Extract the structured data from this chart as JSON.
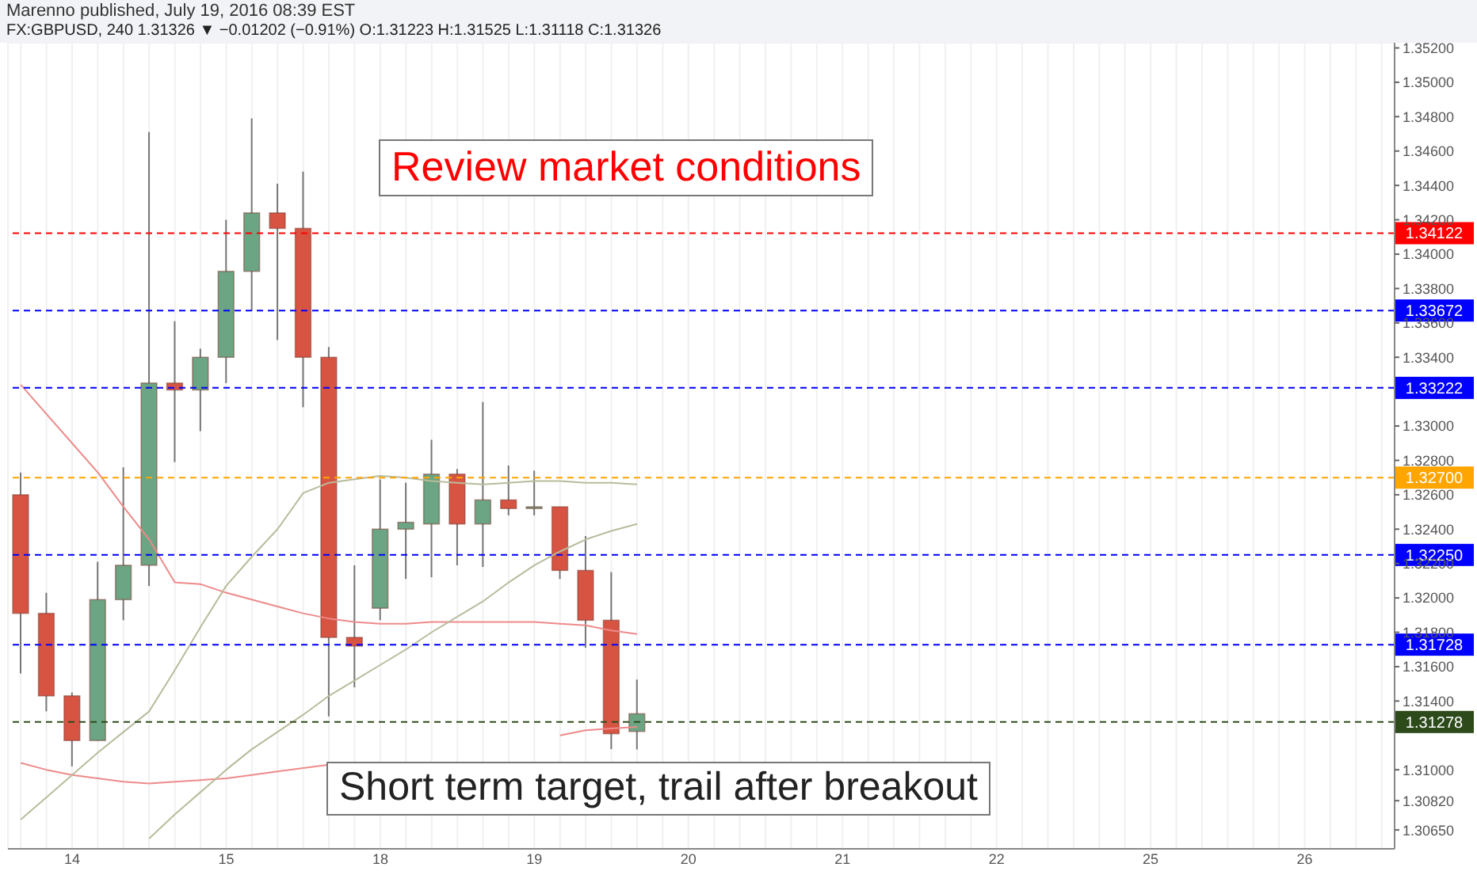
{
  "chart_data": {
    "type": "candlestick",
    "title": "FX:GBPUSD, 240 1.31326 ▼ −0.01202 (−0.91%) O:1.31223 H:1.31525 L:1.31118 C:1.31326",
    "categories": [
      null,
      null,
      "14",
      null,
      null,
      null,
      null,
      null,
      "15",
      null,
      null,
      null,
      null,
      null,
      "18",
      null,
      null,
      null,
      null,
      null,
      "19",
      null,
      null,
      null,
      null,
      null,
      "20",
      null,
      null,
      null,
      null,
      null,
      "21",
      null,
      null,
      null,
      null,
      null,
      "22",
      null,
      null,
      null,
      null,
      null,
      "25",
      null,
      null,
      null,
      null,
      null,
      "26",
      null,
      null,
      null
    ],
    "ohlc": [
      [
        1.326,
        1.3273,
        1.3156,
        1.3191
      ],
      [
        1.3191,
        1.3203,
        1.3134,
        1.3143
      ],
      [
        1.3143,
        1.3145,
        1.3102,
        1.3117
      ],
      [
        1.3117,
        1.3221,
        1.3117,
        1.3199
      ],
      [
        1.3199,
        1.3276,
        1.3187,
        1.3219
      ],
      [
        1.3219,
        1.3471,
        1.3207,
        1.3325
      ],
      [
        1.3325,
        1.3361,
        1.3279,
        1.3321
      ],
      [
        1.3321,
        1.3345,
        1.3297,
        1.334
      ],
      [
        1.334,
        1.342,
        1.3325,
        1.339
      ],
      [
        1.339,
        1.3479,
        1.3367,
        1.3424
      ],
      [
        1.3424,
        1.3441,
        1.335,
        1.3415
      ],
      [
        1.3415,
        1.3448,
        1.3311,
        1.334
      ],
      [
        1.334,
        1.3346,
        1.3131,
        1.3177
      ],
      [
        1.3177,
        1.3219,
        1.3148,
        1.3172
      ],
      [
        1.3194,
        1.3269,
        1.3187,
        1.324
      ],
      [
        1.324,
        1.3267,
        1.3211,
        1.3244
      ],
      [
        1.3243,
        1.3292,
        1.3212,
        1.3272
      ],
      [
        1.3272,
        1.3275,
        1.3219,
        1.3243
      ],
      [
        1.3243,
        1.3314,
        1.3218,
        1.3257
      ],
      [
        1.3257,
        1.3277,
        1.3248,
        1.3252
      ],
      [
        1.3252,
        1.3274,
        1.3248,
        1.3253
      ],
      [
        1.3253,
        1.3253,
        1.3211,
        1.3216
      ],
      [
        1.3216,
        1.3236,
        1.3171,
        1.3187
      ],
      [
        1.3187,
        1.3215,
        1.3112,
        1.3121
      ],
      [
        1.31223,
        1.31525,
        1.31118,
        1.31326
      ],
      null,
      null,
      null,
      null,
      null,
      null,
      null,
      null,
      null,
      null,
      null,
      null,
      null,
      null,
      null,
      null,
      null,
      null,
      null,
      null,
      null,
      null,
      null,
      null,
      null,
      null,
      null,
      null,
      null
    ],
    "colors": [
      "#d75442",
      "#d75442",
      "#d75442",
      "#6ba583",
      "#6ba583",
      "#6ba583",
      "#d75442",
      "#6ba583",
      "#6ba583",
      "#6ba583",
      "#d75442",
      "#d75442",
      "#d75442",
      "#d75442",
      "#6ba583",
      "#6ba583",
      "#6ba583",
      "#d75442",
      "#6ba583",
      "#d75442",
      "#6ba583",
      "#d75442",
      "#d75442",
      "#d75442",
      "#6ba583",
      null,
      null,
      null,
      null,
      null,
      null,
      null,
      null,
      null,
      null,
      null,
      null,
      null,
      null,
      null,
      null,
      null,
      null,
      null,
      null,
      null,
      null,
      null,
      null,
      null,
      null,
      null,
      null,
      null
    ],
    "series": [
      {
        "type": "line",
        "color": "#ee8a8a",
        "values": [
          1.3324,
          1.3307,
          1.329,
          1.3273,
          1.3253,
          1.3234,
          1.3209,
          1.3208,
          1.3203,
          1.3199,
          1.3195,
          1.3191,
          1.3188,
          1.3186,
          1.3185,
          1.3185,
          1.3186,
          1.3186,
          1.3186,
          1.3186,
          1.3186,
          1.3185,
          1.3184,
          1.3181,
          1.3179,
          null,
          null,
          null,
          null,
          null,
          null,
          null,
          null,
          null,
          null,
          null,
          null,
          null,
          null,
          null,
          null,
          null,
          null,
          null,
          null,
          null,
          null,
          null,
          null,
          null,
          null,
          null,
          null,
          null
        ]
      },
      {
        "type": "line",
        "color": "#ee8a8a",
        "values": [
          1.3104,
          1.31,
          1.3097,
          1.3095,
          1.3093,
          1.3092,
          1.3093,
          1.3094,
          1.3095,
          1.3097,
          1.3099,
          1.3101,
          1.3103,
          null,
          null,
          null,
          null,
          null,
          null,
          null,
          null,
          1.312,
          1.3123,
          1.3124,
          1.3125,
          null,
          null,
          null,
          null,
          null,
          null,
          null,
          null,
          null,
          null,
          null,
          null,
          null,
          null,
          null,
          null,
          null,
          null,
          null,
          null,
          null,
          null,
          null,
          null,
          null,
          null,
          null,
          null,
          null
        ]
      },
      {
        "type": "line",
        "color": "#b9bb9c",
        "values": [
          1.3071,
          1.3084,
          1.3097,
          1.311,
          1.3122,
          1.3134,
          1.3158,
          1.3183,
          1.3207,
          1.3224,
          1.324,
          1.3261,
          1.3267,
          1.3269,
          1.3271,
          1.327,
          1.3268,
          1.3267,
          1.3266,
          1.3267,
          1.3268,
          1.3268,
          1.3267,
          1.3267,
          1.3266,
          null,
          null,
          null,
          null,
          null,
          null,
          null,
          null,
          null,
          null,
          null,
          null,
          null,
          null,
          null,
          null,
          null,
          null,
          null,
          null,
          null,
          null,
          null,
          null,
          null,
          null,
          null,
          null,
          null
        ]
      },
      {
        "type": "line",
        "color": "#b9bb9c",
        "values": [
          null,
          null,
          null,
          null,
          null,
          1.306,
          1.3074,
          1.3087,
          1.31,
          1.3112,
          1.3122,
          1.3132,
          1.3143,
          1.3152,
          1.3161,
          1.317,
          1.318,
          1.3189,
          1.3198,
          1.3209,
          1.3219,
          1.3227,
          1.3234,
          1.3239,
          1.3243,
          null,
          null,
          null,
          null,
          null,
          null,
          null,
          null,
          null,
          null,
          null,
          null,
          null,
          null,
          null,
          null,
          null,
          null,
          null,
          null,
          null,
          null,
          null,
          null,
          null,
          null,
          null,
          null,
          null
        ]
      }
    ],
    "ylim": [
      1.3054,
      1.3523
    ],
    "yticks": [
      {
        "value": 1.3065,
        "label": "1.30650"
      },
      {
        "value": 1.3082,
        "label": "1.30820"
      },
      {
        "value": 1.31,
        "label": "1.31000"
      },
      {
        "value": 1.314,
        "label": "1.31400"
      },
      {
        "value": 1.316,
        "label": "1.31600"
      },
      {
        "value": 1.318,
        "label": "1.31800"
      },
      {
        "value": 1.32,
        "label": "1.32000"
      },
      {
        "value": 1.322,
        "label": "1.32200"
      },
      {
        "value": 1.324,
        "label": "1.32400"
      },
      {
        "value": 1.326,
        "label": "1.32600"
      },
      {
        "value": 1.328,
        "label": "1.32800"
      },
      {
        "value": 1.33,
        "label": "1.33000"
      },
      {
        "value": 1.334,
        "label": "1.33400"
      },
      {
        "value": 1.336,
        "label": "1.33600"
      },
      {
        "value": 1.338,
        "label": "1.33800"
      },
      {
        "value": 1.34,
        "label": "1.34000"
      },
      {
        "value": 1.342,
        "label": "1.34200"
      },
      {
        "value": 1.344,
        "label": "1.34400"
      },
      {
        "value": 1.346,
        "label": "1.34600"
      },
      {
        "value": 1.348,
        "label": "1.34800"
      },
      {
        "value": 1.35,
        "label": "1.35000"
      },
      {
        "value": 1.352,
        "label": "1.35200"
      }
    ],
    "ref_lines": [
      {
        "axis": "y",
        "value": 1.34122,
        "label": "1.34122",
        "color": "#ff0000",
        "line_style": "dashed"
      },
      {
        "axis": "y",
        "value": 1.33672,
        "label": "1.33672",
        "color": "#0000ff",
        "line_style": "dashed"
      },
      {
        "axis": "y",
        "value": 1.33222,
        "label": "1.33222",
        "color": "#0000ff",
        "line_style": "dashed"
      },
      {
        "axis": "y",
        "value": 1.327,
        "label": "1.32700",
        "color": "#ffa500",
        "line_style": "dashed"
      },
      {
        "axis": "y",
        "value": 1.3225,
        "label": "1.32250",
        "color": "#0000ff",
        "line_style": "dashed"
      },
      {
        "axis": "y",
        "value": 1.31728,
        "label": "1.31728",
        "color": "#0000ff",
        "line_style": "dashed"
      },
      {
        "axis": "y",
        "value": 1.31278,
        "label": "1.31278",
        "color": "#2d4a1a",
        "line_style": "dashed"
      }
    ],
    "annotations": [
      "Marenno published, July 19, 2016 08:39 EST",
      "Review market conditions",
      "Short term target, trail after breakout"
    ],
    "grid": true,
    "legend": false
  }
}
